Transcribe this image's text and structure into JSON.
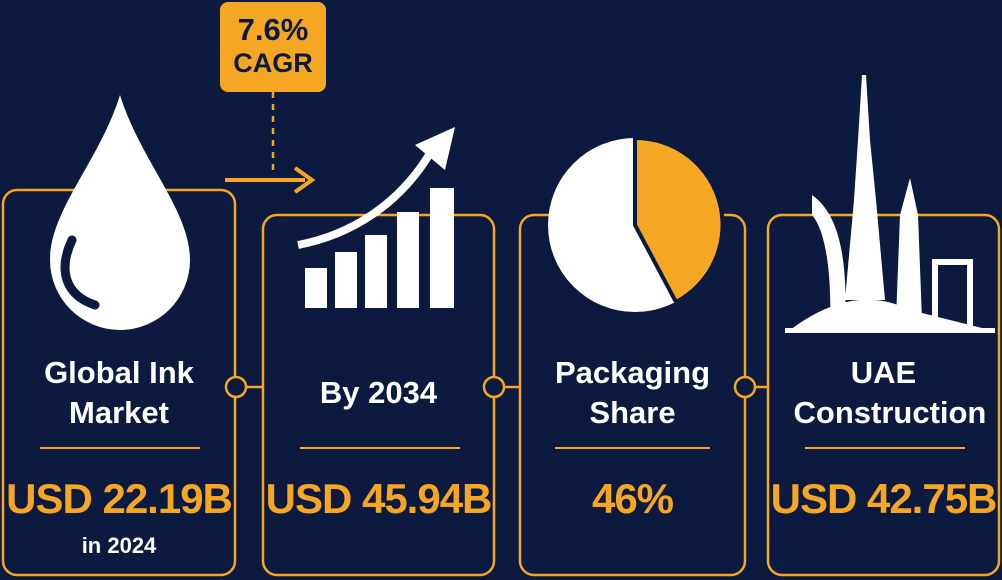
{
  "badge": {
    "value": "7.6%",
    "label": "CAGR"
  },
  "cards": [
    {
      "title": "Global Ink Market",
      "value": "USD 22.19B",
      "note": "in 2024"
    },
    {
      "title": "By 2034",
      "value": "USD 45.94B"
    },
    {
      "title": "Packaging Share",
      "value": "46%"
    },
    {
      "title": "UAE Construction",
      "value": "USD 42.75B"
    }
  ]
}
